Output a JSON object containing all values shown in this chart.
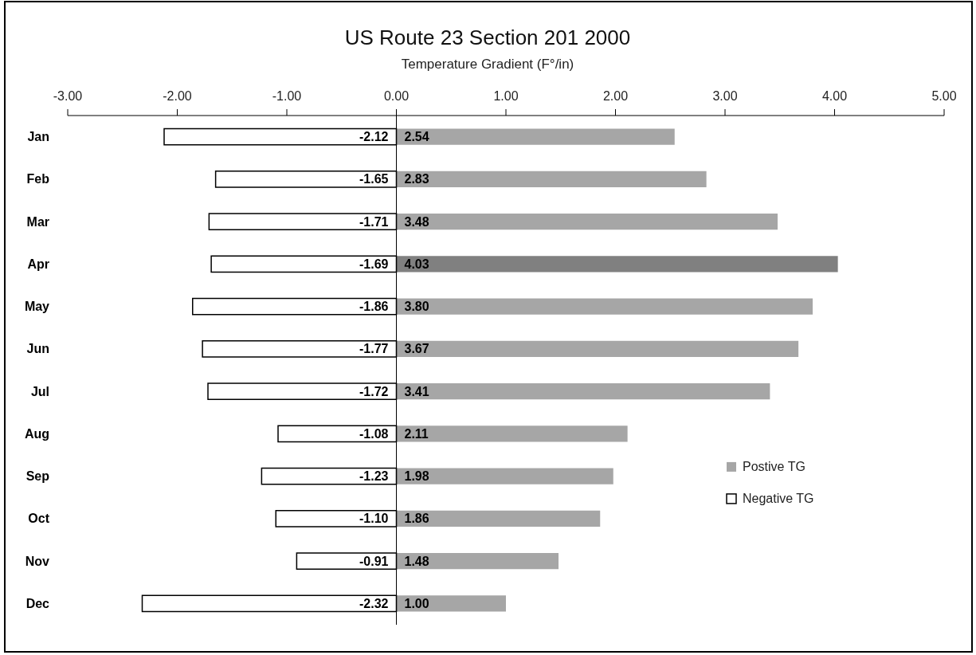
{
  "chart_data": {
    "type": "bar",
    "orientation": "horizontal",
    "stacked": true,
    "title": "US Route 23 Section 201 2000",
    "xlabel": "Temperature Gradient (F°/in)",
    "categories": [
      "Jan",
      "Feb",
      "Mar",
      "Apr",
      "May",
      "Jun",
      "Jul",
      "Aug",
      "Sep",
      "Oct",
      "Nov",
      "Dec"
    ],
    "series": [
      {
        "name": "Postive TG",
        "color": "#a6a6a6",
        "colors": [
          "#a6a6a6",
          "#a6a6a6",
          "#a6a6a6",
          "#808080",
          "#a6a6a6",
          "#a6a6a6",
          "#a6a6a6",
          "#a6a6a6",
          "#a6a6a6",
          "#a6a6a6",
          "#a6a6a6",
          "#a6a6a6"
        ],
        "values": [
          2.54,
          2.83,
          3.48,
          4.03,
          3.8,
          3.67,
          3.41,
          2.11,
          1.98,
          1.86,
          1.48,
          1.0
        ],
        "value_labels": [
          "2.54",
          "2.83",
          "3.48",
          "4.03",
          "3.80",
          "3.67",
          "3.41",
          "2.11",
          "1.98",
          "1.86",
          "1.48",
          "1.00"
        ]
      },
      {
        "name": "Negative TG",
        "color": "#ffffff",
        "values": [
          -2.12,
          -1.65,
          -1.71,
          -1.69,
          -1.86,
          -1.77,
          -1.72,
          -1.08,
          -1.23,
          -1.1,
          -0.91,
          -2.32
        ],
        "value_labels": [
          "-2.12",
          "-1.65",
          "-1.71",
          "-1.69",
          "-1.86",
          "-1.77",
          "-1.72",
          "-1.08",
          "-1.23",
          "-1.10",
          "-0.91",
          "-2.32"
        ]
      }
    ],
    "xlim": [
      -3,
      5
    ],
    "xticks": [
      {
        "value": -3,
        "label": "-3.00"
      },
      {
        "value": -2,
        "label": "-2.00"
      },
      {
        "value": -1,
        "label": "-1.00"
      },
      {
        "value": 0,
        "label": "0.00"
      },
      {
        "value": 1,
        "label": "1.00"
      },
      {
        "value": 2,
        "label": "2.00"
      },
      {
        "value": 3,
        "label": "3.00"
      },
      {
        "value": 4,
        "label": "4.00"
      },
      {
        "value": 5,
        "label": "5.00"
      }
    ],
    "legend": "right"
  }
}
